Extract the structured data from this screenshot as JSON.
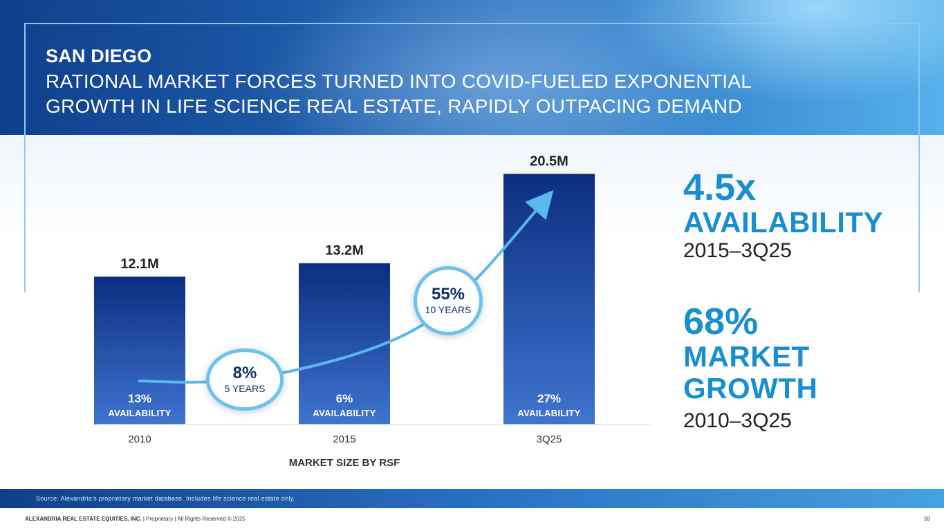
{
  "title": {
    "main": "SAN DIEGO",
    "sub": "RATIONAL MARKET FORCES TURNED INTO COVID-FUELED EXPONENTIAL GROWTH IN LIFE SCIENCE REAL ESTATE, RAPIDLY OUTPACING DEMAND"
  },
  "chart_data": {
    "type": "bar",
    "title": "",
    "xlabel": "MARKET SIZE BY RSF",
    "ylabel": "",
    "categories": [
      "2010",
      "2015",
      "3Q25"
    ],
    "values": [
      12.1,
      13.2,
      20.5
    ],
    "value_labels": [
      "12.1M",
      "13.2M",
      "20.5M"
    ],
    "availability": [
      "13%",
      "6%",
      "27%"
    ],
    "availability_label": "AVAILABILITY",
    "ylim": [
      0,
      22
    ],
    "annotations": [
      {
        "value": "8%",
        "period": "5 YEARS"
      },
      {
        "value": "55%",
        "period": "10 YEARS"
      }
    ]
  },
  "stats": [
    {
      "big": "4.5x",
      "label_lines": [
        "AVAILABILITY"
      ],
      "period": "2015–3Q25"
    },
    {
      "big": "68%",
      "label_lines": [
        "MARKET",
        "GROWTH"
      ],
      "period": "2010–3Q25"
    }
  ],
  "source": "Source: Alexandria’s proprietary market database. Includes life science real estate only.",
  "footer": {
    "company": "ALEXANDRIA REAL ESTATE EQUITIES, INC.",
    "rest": " | Proprietary | All Rights Reserved © 2025",
    "page": "59"
  },
  "colors": {
    "bar_top": "#0b2e80",
    "bar_bottom": "#3f74cf",
    "accent": "#1a8fd0",
    "arrow": "#5ab8ea"
  }
}
